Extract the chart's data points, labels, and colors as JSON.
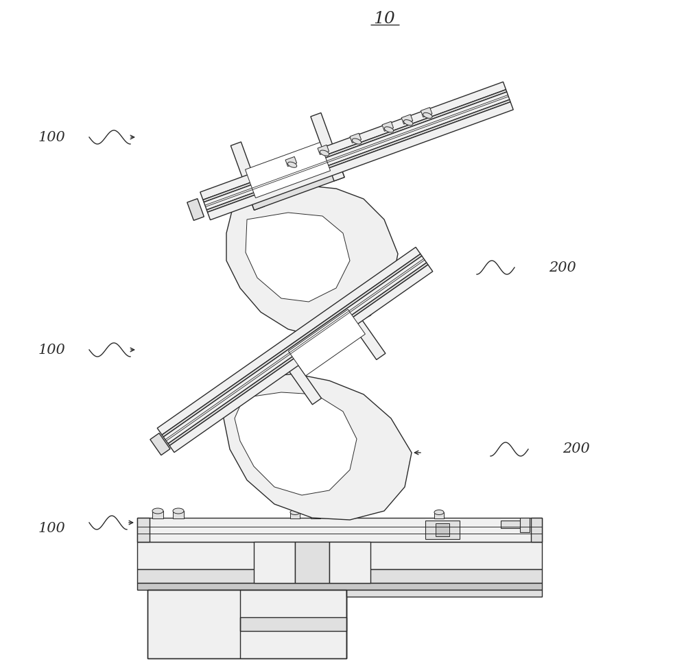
{
  "bg_color": "#ffffff",
  "line_color": "#2a2a2a",
  "light_fill": "#f0f0f0",
  "mid_fill": "#e0e0e0",
  "dark_fill": "#c8c8c8",
  "figsize": [
    10.0,
    9.74
  ],
  "dpi": 100,
  "labels": {
    "title": "10",
    "l100_top": "100",
    "l100_mid": "100",
    "l100_bot": "100",
    "l200_top": "200",
    "l200_bot": "200"
  }
}
